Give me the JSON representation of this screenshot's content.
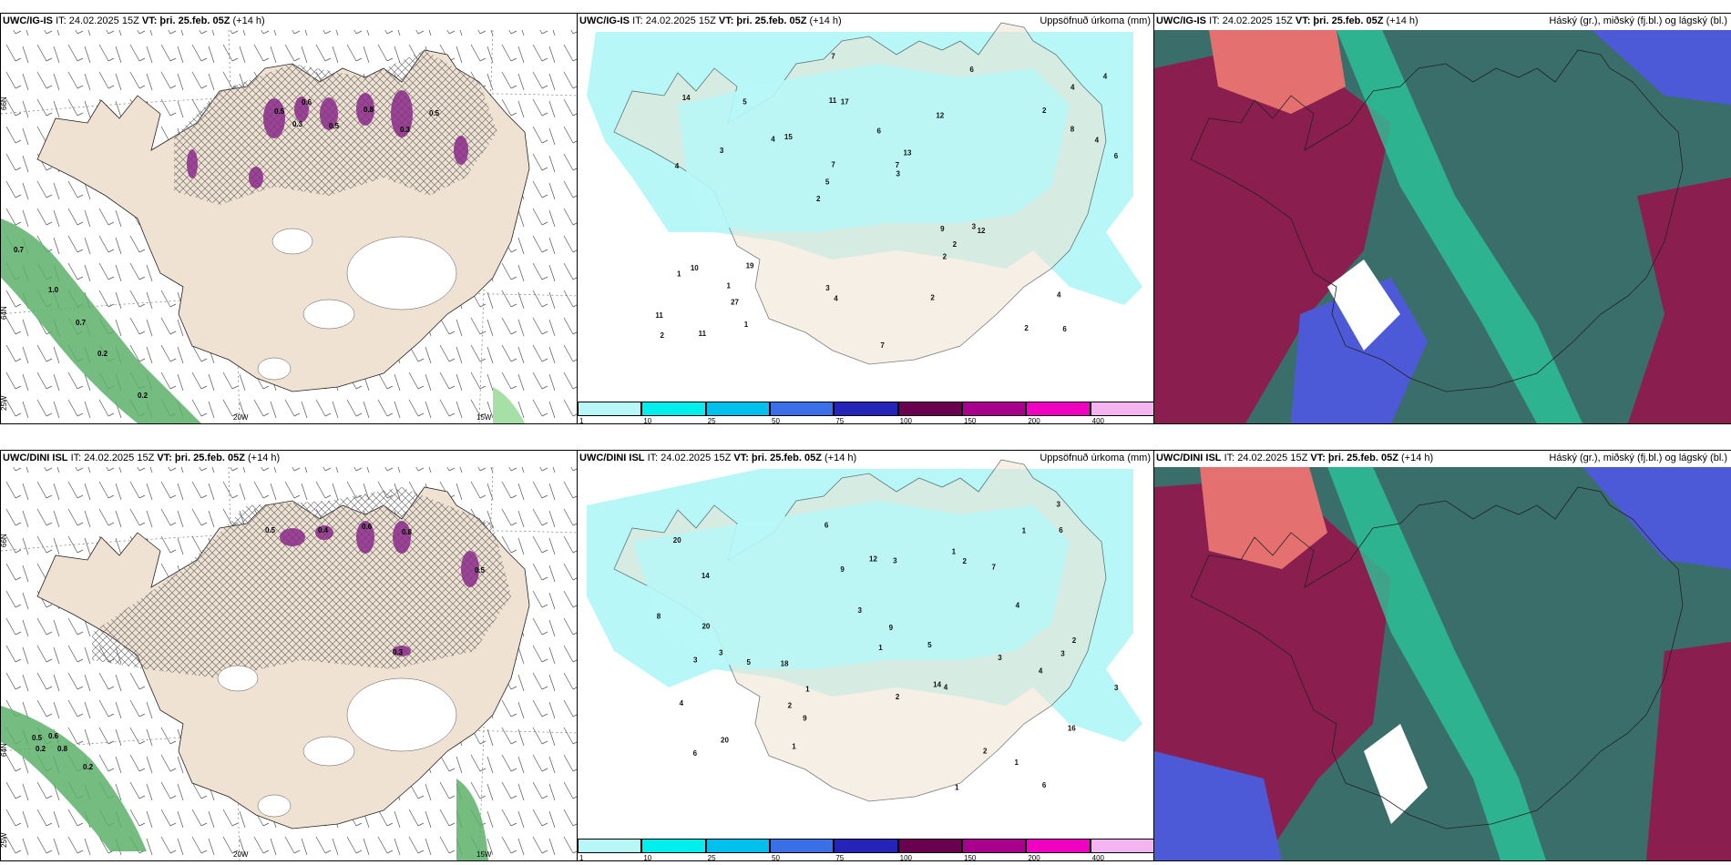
{
  "panels": {
    "p1": {
      "model": "UWC/IG-IS",
      "it": "IT: 24.02.2025 15Z",
      "vt_label": "VT:",
      "vt_value": "þri. 25.feb. 05Z",
      "offset": "(+14 h)"
    },
    "p2": {
      "model": "UWC/IG-IS",
      "it": "IT: 24.02.2025 15Z",
      "vt_label": "VT:",
      "vt_value": "þri. 25.feb. 05Z",
      "offset": "(+14 h)",
      "right_title": "Uppsöfnuð úrkoma (mm)"
    },
    "p3": {
      "model": "UWC/IG-IS",
      "it": "IT: 24.02.2025 15Z",
      "vt_label": "VT:",
      "vt_value": "þri. 25.feb. 05Z",
      "offset": "(+14 h)",
      "right_title": "Háský (gr.), miðský (fj.bl.) og lágský (bl.)"
    },
    "p4": {
      "model": "UWC/DINI ISL",
      "it": "IT: 24.02.2025 15Z",
      "vt_label": "VT:",
      "vt_value": "þri. 25.feb. 05Z",
      "offset": "(+14 h)"
    },
    "p5": {
      "model": "UWC/DINI ISL",
      "it": "IT: 24.02.2025 15Z",
      "vt_label": "VT:",
      "vt_value": "þri. 25.feb. 05Z",
      "offset": "(+14 h)",
      "right_title": "Uppsöfnuð úrkoma (mm)"
    },
    "p6": {
      "model": "UWC/DINI ISL",
      "it": "IT: 24.02.2025 15Z",
      "vt_label": "VT:",
      "vt_value": "þri. 25.feb. 05Z",
      "offset": "(+14 h)",
      "right_title": "Háský (gr.), miðský (fj.bl.) og lágský (bl.)"
    }
  },
  "axes": {
    "lon_20w": "20W",
    "lon_15w": "15W",
    "lon_25w": "25W",
    "lat_66n": "66N",
    "lat_64n": "64N"
  },
  "legend": {
    "colors": [
      "#b8f7f7",
      "#00eeee",
      "#00c0ee",
      "#3a6fe8",
      "#2424b8",
      "#6a0050",
      "#a8008c",
      "#f000c0",
      "#f4b4f0"
    ],
    "ticks": [
      "1",
      "10",
      "25",
      "50",
      "75",
      "100",
      "150",
      "200",
      "400"
    ]
  },
  "map_labels": {
    "p1": [
      "0.7",
      "1.0",
      "0.7",
      "0.2",
      "0.5",
      "0.3",
      "0.5",
      "0.8",
      "0.3",
      "0.5",
      "0.6",
      "0.2"
    ],
    "p4": [
      "0.5",
      "0.6",
      "0.2",
      "0.8",
      "0.5",
      "0.4",
      "0.6",
      "0.8",
      "0.3",
      "0.5",
      "0.2"
    ]
  },
  "precip_values": {
    "p2": [
      "6",
      "4",
      "4",
      "2",
      "12",
      "11",
      "11",
      "6",
      "10",
      "15",
      "11",
      "27",
      "17",
      "13",
      "12",
      "14",
      "7",
      "6",
      "9",
      "8",
      "5",
      "3",
      "7",
      "5",
      "6",
      "19",
      "2",
      "4",
      "3",
      "7",
      "4",
      "3",
      "2",
      "1",
      "4",
      "7",
      "2",
      "4",
      "3",
      "1",
      "2",
      "4",
      "2",
      "2",
      "1"
    ],
    "p5": [
      "6",
      "3",
      "14",
      "20",
      "16",
      "14",
      "20",
      "18",
      "7",
      "12",
      "2",
      "1",
      "9",
      "6",
      "5",
      "4",
      "3",
      "9",
      "8",
      "6",
      "3",
      "3",
      "4",
      "3",
      "2",
      "20",
      "5",
      "1",
      "3",
      "6",
      "4",
      "3",
      "2",
      "1",
      "9",
      "4",
      "3",
      "2",
      "1",
      "1",
      "1",
      "2",
      "1"
    ]
  },
  "colors": {
    "land": "#efe2d2",
    "hatch": "#777777",
    "purple": "#8a2a8a",
    "green": "#2f8a45",
    "cyan": "#b8f7f7"
  }
}
